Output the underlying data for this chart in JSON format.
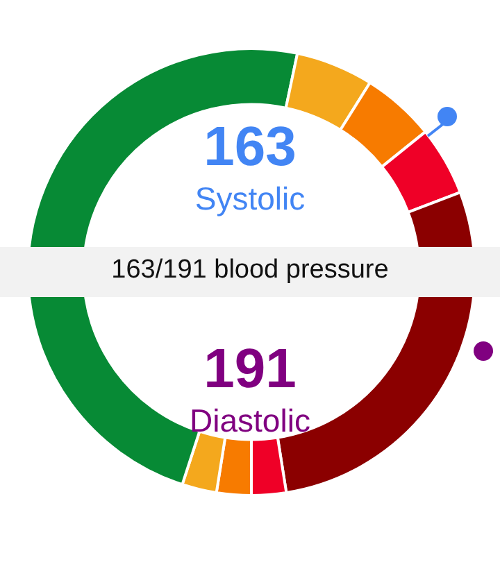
{
  "chart_data": {
    "type": "donut",
    "title": "163/191 blood pressure",
    "annotations": [
      "163",
      "Systolic",
      "191",
      "Diastolic"
    ],
    "categories": [
      null,
      null,
      null,
      null,
      null,
      null,
      null,
      null,
      null,
      null
    ],
    "values": [
      28.3,
      5.6,
      5.3,
      5,
      5.8,
      22.5,
      2.5,
      2.5,
      2.5,
      20
    ],
    "colors": [
      "#078a35",
      "#f4a81d",
      "#f77b00",
      "#ef0027",
      "#8b0000",
      "#8b0000",
      "#ef0027",
      "#f77b00",
      "#f4a81d",
      "#078a35"
    ],
    "legend": false
  }
}
